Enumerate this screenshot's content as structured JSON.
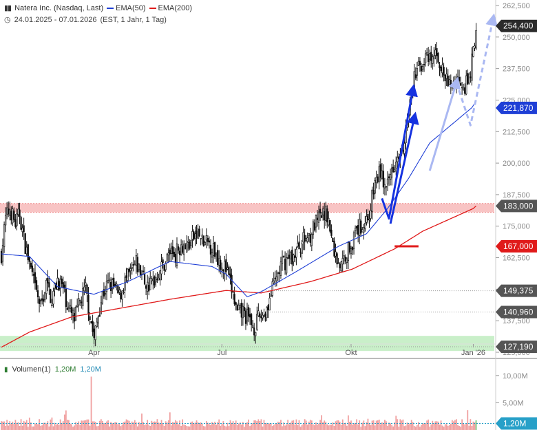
{
  "header": {
    "title": "Natera Inc. (Nasdaq, Last)",
    "ema50_label": "EMA(50)",
    "ema200_label": "EMA(200)",
    "period": "24.01.2025 - 07.01.2026",
    "period_detail": "(EST, 1 Jahr, 1 Tag)"
  },
  "volume_header": {
    "label": "Volumen(1)",
    "value1": "1,20M",
    "value2": "1,20M"
  },
  "colors": {
    "ema50": "#1f3fd6",
    "ema200": "#e01a1a",
    "candle": "#111111",
    "arrow_dark": "#1532e0",
    "arrow_light": "#aab8f2",
    "support_zone": "#c9efc9",
    "resistance_zone": "#f8c4c4",
    "volume_bar": "#f0a0a0",
    "volume_bar_green": "#7cc67c",
    "badge_dark": "#2b2b2b",
    "badge_grey": "#555555",
    "badge_red": "#e01a1a",
    "badge_blue": "#1f3fd6",
    "badge_vol": "#27a0c8"
  },
  "chart_data": {
    "type": "candlestick",
    "ylim": [
      125000,
      262500
    ],
    "y_ticks": [
      "262,500",
      "250,000",
      "237,500",
      "225,000",
      "212,500",
      "200,000",
      "187,500",
      "175,000",
      "162,500",
      "150,000",
      "137,500",
      "125,000"
    ],
    "y_tick_values": [
      262500,
      250000,
      237500,
      225000,
      212500,
      200000,
      187500,
      175000,
      162500,
      150000,
      137500,
      125000
    ],
    "x_labels": [
      "Apr",
      "Jul",
      "Okt",
      "Jan '26"
    ],
    "x_label_days": [
      66,
      157,
      249,
      336
    ],
    "total_days": 350,
    "price_path": [
      [
        0,
        164000
      ],
      [
        3,
        178000
      ],
      [
        6,
        182000
      ],
      [
        10,
        176000
      ],
      [
        13,
        180000
      ],
      [
        16,
        170000
      ],
      [
        20,
        160000
      ],
      [
        24,
        150000
      ],
      [
        28,
        143000
      ],
      [
        32,
        152000
      ],
      [
        36,
        146000
      ],
      [
        40,
        154000
      ],
      [
        44,
        150000
      ],
      [
        48,
        142000
      ],
      [
        52,
        138000
      ],
      [
        56,
        145000
      ],
      [
        60,
        150000
      ],
      [
        63,
        140000
      ],
      [
        66,
        130000
      ],
      [
        69,
        140000
      ],
      [
        72,
        148000
      ],
      [
        76,
        152000
      ],
      [
        80,
        151000
      ],
      [
        84,
        147000
      ],
      [
        88,
        153000
      ],
      [
        92,
        156000
      ],
      [
        96,
        160000
      ],
      [
        100,
        156000
      ],
      [
        104,
        151000
      ],
      [
        108,
        153000
      ],
      [
        112,
        157000
      ],
      [
        116,
        160000
      ],
      [
        120,
        165000
      ],
      [
        124,
        164000
      ],
      [
        128,
        168000
      ],
      [
        132,
        167000
      ],
      [
        136,
        170000
      ],
      [
        140,
        172000
      ],
      [
        144,
        168000
      ],
      [
        148,
        168000
      ],
      [
        152,
        165000
      ],
      [
        156,
        161000
      ],
      [
        160,
        158000
      ],
      [
        164,
        150000
      ],
      [
        168,
        140000
      ],
      [
        172,
        141000
      ],
      [
        176,
        138000
      ],
      [
        180,
        135000
      ],
      [
        184,
        139000
      ],
      [
        188,
        141000
      ],
      [
        192,
        148000
      ],
      [
        196,
        155000
      ],
      [
        200,
        160000
      ],
      [
        204,
        162000
      ],
      [
        208,
        163000
      ],
      [
        212,
        167000
      ],
      [
        216,
        170000
      ],
      [
        220,
        172000
      ],
      [
        224,
        176000
      ],
      [
        228,
        179000
      ],
      [
        232,
        180000
      ],
      [
        235,
        170000
      ],
      [
        238,
        163000
      ],
      [
        242,
        159000
      ],
      [
        246,
        165000
      ],
      [
        250,
        169000
      ],
      [
        254,
        174000
      ],
      [
        258,
        176000
      ],
      [
        262,
        180000
      ],
      [
        266,
        192000
      ],
      [
        270,
        197000
      ],
      [
        274,
        188000
      ],
      [
        278,
        198000
      ],
      [
        282,
        204000
      ],
      [
        286,
        208000
      ],
      [
        290,
        220000
      ],
      [
        294,
        234000
      ],
      [
        298,
        239000
      ],
      [
        302,
        241000
      ],
      [
        306,
        240000
      ],
      [
        310,
        244000
      ],
      [
        314,
        236000
      ],
      [
        318,
        231000
      ],
      [
        322,
        232000
      ],
      [
        326,
        234000
      ],
      [
        330,
        231000
      ],
      [
        333,
        233000
      ],
      [
        336,
        244000
      ],
      [
        338,
        254400
      ]
    ],
    "ema50": [
      [
        0,
        164000
      ],
      [
        20,
        163000
      ],
      [
        40,
        151000
      ],
      [
        66,
        148000
      ],
      [
        90,
        153000
      ],
      [
        120,
        161000
      ],
      [
        150,
        159000
      ],
      [
        160,
        156000
      ],
      [
        175,
        147000
      ],
      [
        185,
        149000
      ],
      [
        210,
        157000
      ],
      [
        240,
        167000
      ],
      [
        260,
        172000
      ],
      [
        275,
        182000
      ],
      [
        290,
        194000
      ],
      [
        305,
        208000
      ],
      [
        320,
        215000
      ],
      [
        335,
        222000
      ],
      [
        338,
        224500
      ]
    ],
    "ema200": [
      [
        0,
        127000
      ],
      [
        20,
        133000
      ],
      [
        50,
        139000
      ],
      [
        80,
        142000
      ],
      [
        120,
        146000
      ],
      [
        160,
        149500
      ],
      [
        185,
        148500
      ],
      [
        220,
        153000
      ],
      [
        250,
        158000
      ],
      [
        280,
        166000
      ],
      [
        300,
        173000
      ],
      [
        320,
        178000
      ],
      [
        336,
        182000
      ],
      [
        338,
        183000
      ]
    ],
    "price_levels": [
      {
        "label": "254,400",
        "value": 254400,
        "style": "dark"
      },
      {
        "label": "221,870",
        "value": 221870,
        "style": "blue"
      },
      {
        "label": "183,000",
        "value": 183000,
        "style": "grey"
      },
      {
        "label": "167,000",
        "value": 167000,
        "style": "red"
      },
      {
        "label": "149,375",
        "value": 149375,
        "style": "grey"
      },
      {
        "label": "140,960",
        "value": 140960,
        "style": "grey"
      },
      {
        "label": "127,190",
        "value": 127190,
        "style": "grey"
      }
    ],
    "resistance_zone": [
      180500,
      184000
    ],
    "support_zone": [
      125500,
      131500
    ],
    "volume": {
      "ylim": [
        0,
        12000000
      ],
      "ticks": [
        "10,00M",
        "5,00M"
      ],
      "tick_values": [
        10000000,
        5000000
      ],
      "current": "1,20M",
      "current_value": 1200000
    }
  }
}
